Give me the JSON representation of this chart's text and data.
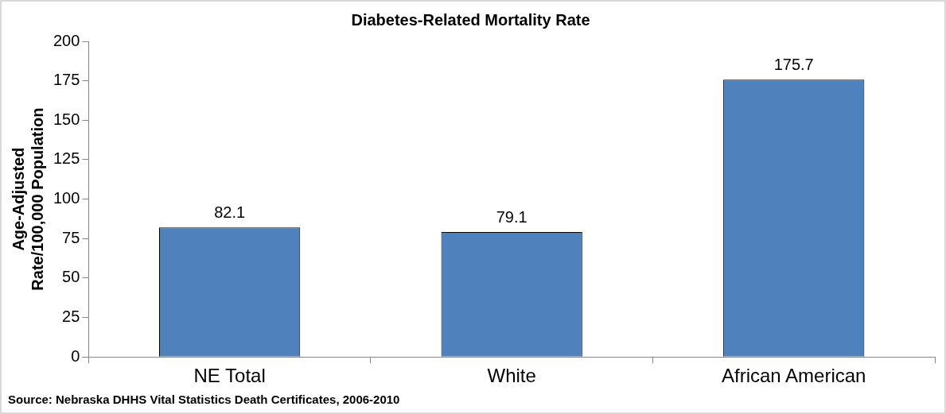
{
  "chart_data": {
    "type": "bar",
    "title": "Diabetes-Related Mortality Rate",
    "ylabel": "Age-Adjusted\nRate/100,000 Population",
    "categories": [
      "NE Total",
      "White",
      "African American"
    ],
    "values": [
      82.1,
      79.1,
      175.7
    ],
    "color": "#4f81bd",
    "ylim": [
      0,
      200
    ],
    "yticks": [
      0,
      25,
      50,
      75,
      100,
      125,
      150,
      175,
      200
    ],
    "data_labels": true,
    "grid": false,
    "legend": false,
    "annotations": [
      "Source: Nebraska DHHS Vital Statistics Death Certificates, 2006-2010"
    ]
  }
}
